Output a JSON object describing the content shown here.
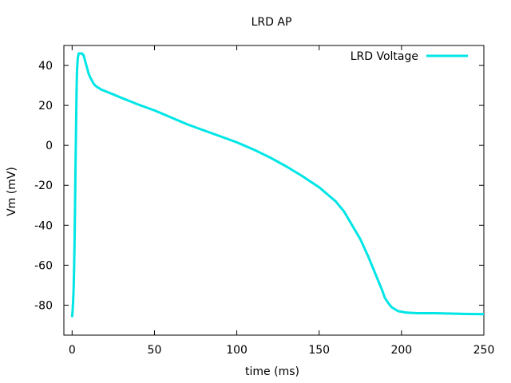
{
  "chart_data": {
    "type": "line",
    "title": "LRD AP",
    "xlabel": "time (ms)",
    "ylabel": "Vm (mV)",
    "xlim": [
      -5,
      250
    ],
    "ylim": [
      -95,
      50
    ],
    "xticks": [
      0,
      50,
      100,
      150,
      200,
      250
    ],
    "yticks": [
      40,
      20,
      0,
      -20,
      -40,
      -60,
      -80
    ],
    "grid": false,
    "legend": {
      "position": "top-right"
    },
    "series": [
      {
        "name": "LRD Voltage",
        "color": "#00e5e5",
        "x": [
          0,
          0.3,
          0.6,
          0.9,
          1.2,
          1.5,
          1.8,
          2.1,
          2.4,
          2.7,
          3.0,
          3.5,
          4.0,
          5.0,
          6.0,
          7.0,
          8.0,
          9.0,
          10,
          11,
          12,
          13,
          14,
          15,
          16,
          17,
          18,
          19,
          20,
          25,
          30,
          40,
          50,
          60,
          70,
          80,
          90,
          100,
          110,
          120,
          130,
          140,
          150,
          155,
          160,
          165,
          170,
          175,
          180,
          185,
          188,
          190,
          192,
          194,
          196,
          198,
          200,
          202,
          205,
          210,
          220,
          230,
          240,
          250
        ],
        "values": [
          -86,
          -83,
          -78,
          -72,
          -62,
          -48,
          -30,
          -10,
          10,
          28,
          38,
          44,
          46,
          46,
          46,
          45,
          42,
          39,
          36,
          34,
          32.5,
          31,
          30,
          29.3,
          28.8,
          28.3,
          27.8,
          27.5,
          27.2,
          25.5,
          23.8,
          20.5,
          17.5,
          14,
          10.5,
          7.5,
          4.5,
          1.5,
          -2,
          -6,
          -10.5,
          -15.5,
          -21,
          -24.5,
          -28,
          -33,
          -40,
          -47,
          -56,
          -66,
          -72,
          -76.5,
          -79,
          -81,
          -82,
          -83,
          -83.3,
          -83.6,
          -83.8,
          -84,
          -84,
          -84.2,
          -84.4,
          -84.5
        ]
      }
    ]
  }
}
